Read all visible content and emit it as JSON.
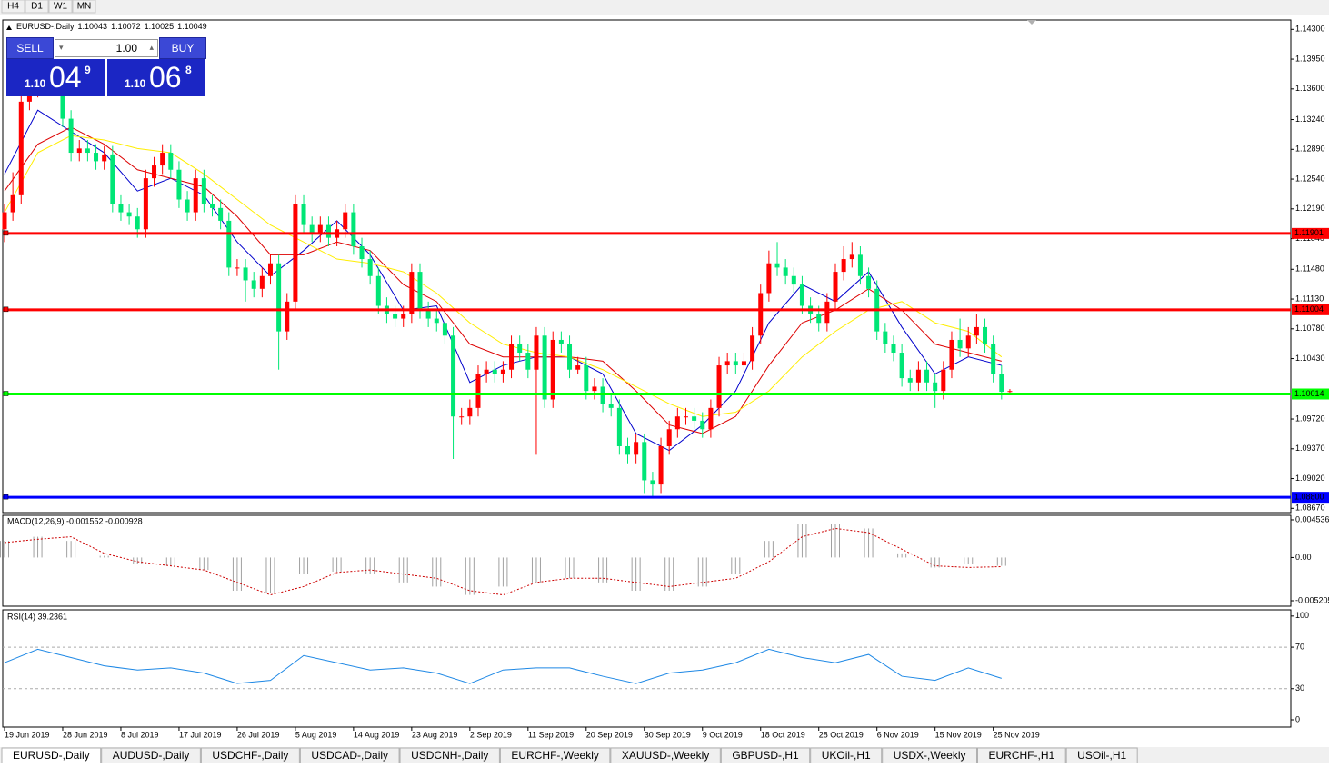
{
  "toolbar": [
    "H4",
    "D1",
    "W1",
    "MN"
  ],
  "trade_panel": {
    "sell": "SELL",
    "buy": "BUY",
    "lots": "1.00",
    "bid": {
      "big": "1.10",
      "main": "04",
      "sup": "9"
    },
    "ask": {
      "big": "1.10",
      "main": "06",
      "sup": "8"
    }
  },
  "chart_data": {
    "type": "candlestick",
    "title": "EURUSD-,Daily",
    "up_color": "#ff0000",
    "down_color": "#00e676",
    "ohlc": [
      [
        1.1195,
        1.1225,
        1.118,
        1.1215
      ],
      [
        1.1215,
        1.1262,
        1.1205,
        1.1235
      ],
      [
        1.1235,
        1.1355,
        1.1225,
        1.1345
      ],
      [
        1.1345,
        1.1375,
        1.1335,
        1.136
      ],
      [
        1.136,
        1.138,
        1.135,
        1.1365
      ],
      [
        1.1365,
        1.1385,
        1.1355,
        1.137
      ],
      [
        1.137,
        1.138,
        1.1355,
        1.1365
      ],
      [
        1.1365,
        1.1375,
        1.1315,
        1.1325
      ],
      [
        1.1325,
        1.1335,
        1.1275,
        1.1285
      ],
      [
        1.1285,
        1.13,
        1.1275,
        1.129
      ],
      [
        1.129,
        1.13,
        1.1275,
        1.1285
      ],
      [
        1.1285,
        1.1295,
        1.1265,
        1.1275
      ],
      [
        1.1275,
        1.1293,
        1.1265,
        1.1283
      ],
      [
        1.1283,
        1.1293,
        1.1215,
        1.1225
      ],
      [
        1.1225,
        1.1235,
        1.1205,
        1.1215
      ],
      [
        1.1215,
        1.1225,
        1.12,
        1.121
      ],
      [
        1.121,
        1.122,
        1.1185,
        1.1195
      ],
      [
        1.1195,
        1.1265,
        1.1185,
        1.1255
      ],
      [
        1.1255,
        1.128,
        1.1245,
        1.127
      ],
      [
        1.127,
        1.1295,
        1.126,
        1.1285
      ],
      [
        1.1285,
        1.1295,
        1.1255,
        1.1265
      ],
      [
        1.1265,
        1.1275,
        1.122,
        1.123
      ],
      [
        1.123,
        1.124,
        1.1205,
        1.1215
      ],
      [
        1.1215,
        1.1265,
        1.1205,
        1.1255
      ],
      [
        1.1255,
        1.1265,
        1.1215,
        1.1225
      ],
      [
        1.1225,
        1.1235,
        1.121,
        1.122
      ],
      [
        1.122,
        1.123,
        1.1195,
        1.1205
      ],
      [
        1.1205,
        1.1215,
        1.114,
        1.115
      ],
      [
        1.115,
        1.116,
        1.114,
        1.115
      ],
      [
        1.115,
        1.116,
        1.111,
        1.1135
      ],
      [
        1.1135,
        1.1145,
        1.1115,
        1.1125
      ],
      [
        1.1125,
        1.115,
        1.1115,
        1.114
      ],
      [
        1.114,
        1.1165,
        1.113,
        1.1155
      ],
      [
        1.1155,
        1.1165,
        1.103,
        1.1075
      ],
      [
        1.1075,
        1.112,
        1.1065,
        1.111
      ],
      [
        1.111,
        1.1235,
        1.11,
        1.1225
      ],
      [
        1.1225,
        1.1235,
        1.119,
        1.12
      ],
      [
        1.12,
        1.121,
        1.118,
        1.119
      ],
      [
        1.119,
        1.121,
        1.118,
        1.12
      ],
      [
        1.12,
        1.121,
        1.1175,
        1.1185
      ],
      [
        1.1185,
        1.1205,
        1.1175,
        1.1195
      ],
      [
        1.1195,
        1.1225,
        1.1185,
        1.1215
      ],
      [
        1.1215,
        1.1225,
        1.1165,
        1.1175
      ],
      [
        1.1175,
        1.1185,
        1.115,
        1.116
      ],
      [
        1.116,
        1.117,
        1.113,
        1.114
      ],
      [
        1.114,
        1.115,
        1.1095,
        1.1105
      ],
      [
        1.1105,
        1.1115,
        1.1085,
        1.1095
      ],
      [
        1.1095,
        1.1105,
        1.108,
        1.109
      ],
      [
        1.109,
        1.1105,
        1.108,
        1.1095
      ],
      [
        1.1095,
        1.1155,
        1.1085,
        1.1145
      ],
      [
        1.1145,
        1.1155,
        1.109,
        1.11
      ],
      [
        1.11,
        1.111,
        1.108,
        1.109
      ],
      [
        1.109,
        1.11,
        1.1075,
        1.1085
      ],
      [
        1.1085,
        1.1095,
        1.106,
        1.107
      ],
      [
        1.107,
        1.108,
        1.0925,
        1.0975
      ],
      [
        1.0975,
        1.0985,
        1.0965,
        1.0975
      ],
      [
        1.0975,
        1.0995,
        1.0965,
        1.0985
      ],
      [
        1.0985,
        1.1035,
        1.0975,
        1.1025
      ],
      [
        1.1025,
        1.104,
        1.1015,
        1.103
      ],
      [
        1.103,
        1.104,
        1.1015,
        1.1025
      ],
      [
        1.1025,
        1.104,
        1.1015,
        1.103
      ],
      [
        1.103,
        1.107,
        1.102,
        1.106
      ],
      [
        1.106,
        1.107,
        1.104,
        1.105
      ],
      [
        1.105,
        1.106,
        1.102,
        1.103
      ],
      [
        1.103,
        1.108,
        1.093,
        1.107
      ],
      [
        1.107,
        1.108,
        1.0985,
        1.0995
      ],
      [
        1.0995,
        1.1075,
        1.0985,
        1.1065
      ],
      [
        1.1065,
        1.1075,
        1.105,
        1.106
      ],
      [
        1.106,
        1.107,
        1.102,
        1.103
      ],
      [
        1.103,
        1.1045,
        1.1025,
        1.1035
      ],
      [
        1.1035,
        1.1045,
        1.0995,
        1.1005
      ],
      [
        1.1005,
        1.102,
        1.0995,
        1.101
      ],
      [
        1.101,
        1.102,
        1.098,
        1.099
      ],
      [
        1.099,
        1.1,
        1.0975,
        1.0985
      ],
      [
        1.0985,
        1.0995,
        1.093,
        1.094
      ],
      [
        1.094,
        1.095,
        1.092,
        1.093
      ],
      [
        1.093,
        1.0955,
        1.092,
        1.0945
      ],
      [
        1.0945,
        1.0955,
        1.0885,
        1.09
      ],
      [
        1.09,
        1.091,
        1.088,
        1.0895
      ],
      [
        1.0895,
        1.095,
        1.0885,
        1.094
      ],
      [
        1.094,
        1.097,
        1.093,
        1.096
      ],
      [
        1.096,
        1.0985,
        1.095,
        1.0975
      ],
      [
        1.0975,
        1.0985,
        1.0965,
        1.0975
      ],
      [
        1.0975,
        1.0985,
        1.096,
        1.097
      ],
      [
        1.097,
        1.098,
        1.095,
        1.096
      ],
      [
        1.096,
        1.0995,
        1.095,
        1.0985
      ],
      [
        1.0985,
        1.1045,
        1.0975,
        1.1035
      ],
      [
        1.1035,
        1.105,
        1.1025,
        1.104
      ],
      [
        1.104,
        1.105,
        1.1025,
        1.1035
      ],
      [
        1.1035,
        1.105,
        1.1025,
        1.104
      ],
      [
        1.104,
        1.108,
        1.103,
        1.107
      ],
      [
        1.107,
        1.113,
        1.106,
        1.112
      ],
      [
        1.112,
        1.117,
        1.111,
        1.1155
      ],
      [
        1.1155,
        1.118,
        1.114,
        1.115
      ],
      [
        1.115,
        1.116,
        1.113,
        1.114
      ],
      [
        1.114,
        1.115,
        1.112,
        1.113
      ],
      [
        1.113,
        1.114,
        1.1095,
        1.1105
      ],
      [
        1.1105,
        1.1115,
        1.1085,
        1.1095
      ],
      [
        1.1095,
        1.1105,
        1.1075,
        1.1085
      ],
      [
        1.1085,
        1.112,
        1.1075,
        1.111
      ],
      [
        1.111,
        1.1155,
        1.11,
        1.1145
      ],
      [
        1.1145,
        1.1175,
        1.1135,
        1.116
      ],
      [
        1.116,
        1.118,
        1.115,
        1.1165
      ],
      [
        1.1165,
        1.1175,
        1.113,
        1.114
      ],
      [
        1.114,
        1.115,
        1.1115,
        1.1125
      ],
      [
        1.1125,
        1.1135,
        1.1065,
        1.1075
      ],
      [
        1.1075,
        1.1085,
        1.105,
        1.106
      ],
      [
        1.106,
        1.107,
        1.104,
        1.105
      ],
      [
        1.105,
        1.106,
        1.101,
        1.102
      ],
      [
        1.102,
        1.103,
        1.1005,
        1.1015
      ],
      [
        1.1015,
        1.104,
        1.1005,
        1.103
      ],
      [
        1.103,
        1.104,
        1.1005,
        1.1015
      ],
      [
        1.1015,
        1.1025,
        1.0985,
        1.1005
      ],
      [
        1.1005,
        1.104,
        1.0995,
        1.103
      ],
      [
        1.103,
        1.1075,
        1.102,
        1.1065
      ],
      [
        1.1065,
        1.109,
        1.1045,
        1.1055
      ],
      [
        1.1055,
        1.108,
        1.1045,
        1.107
      ],
      [
        1.107,
        1.1095,
        1.106,
        1.108
      ],
      [
        1.108,
        1.109,
        1.105,
        1.106
      ],
      [
        1.106,
        1.107,
        1.1015,
        1.1025
      ],
      [
        1.1025,
        1.1035,
        1.0995,
        1.1004
      ],
      [
        1.10043,
        1.10072,
        1.10025,
        1.10049
      ]
    ],
    "ylim": [
      1.0862,
      1.1441
    ],
    "yticks": [
      {
        "value": 1.143,
        "label": "1.14300"
      },
      {
        "value": 1.1395,
        "label": "1.13950"
      },
      {
        "value": 1.136,
        "label": "1.13600"
      },
      {
        "value": 1.1324,
        "label": "1.13240"
      },
      {
        "value": 1.1289,
        "label": "1.12890"
      },
      {
        "value": 1.1254,
        "label": "1.12540"
      },
      {
        "value": 1.1219,
        "label": "1.12190"
      },
      {
        "value": 1.1184,
        "label": "1.11840"
      },
      {
        "value": 1.1148,
        "label": "1.11480"
      },
      {
        "value": 1.1113,
        "label": "1.11130"
      },
      {
        "value": 1.1078,
        "label": "1.10780"
      },
      {
        "value": 1.1043,
        "label": "1.10430"
      },
      {
        "value": 1.0972,
        "label": "1.09720"
      },
      {
        "value": 1.0937,
        "label": "1.09370"
      },
      {
        "value": 1.0902,
        "label": "1.09020"
      },
      {
        "value": 1.0867,
        "label": "1.08670"
      }
    ],
    "levels": [
      {
        "price": 1.11901,
        "color": "#ff0000"
      },
      {
        "price": 1.11004,
        "color": "#ff0000"
      },
      {
        "price": 1.10014,
        "color": "#00ff00"
      },
      {
        "price": {
          "value": 1.088,
          "label": "1.08800"
        },
        "color": "#0000ff"
      }
    ],
    "dates": [
      "19 Jun 2019",
      "28 Jun 2019",
      "8 Jul 2019",
      "17 Jul 2019",
      "26 Jul 2019",
      "5 Aug 2019",
      "14 Aug 2019",
      "23 Aug 2019",
      "2 Sep 2019",
      "11 Sep 2019",
      "20 Sep 2019",
      "30 Sep 2019",
      "9 Oct 2019",
      "18 Oct 2019",
      "28 Oct 2019",
      "6 Nov 2019",
      "15 Nov 2019",
      "25 Nov 2019"
    ],
    "ma": {
      "x": [
        0,
        4,
        8,
        12,
        16,
        20,
        24,
        28,
        32,
        36,
        40,
        44,
        48,
        52,
        56,
        60,
        64,
        68,
        72,
        76,
        80,
        84,
        88,
        92,
        96,
        100,
        104,
        108,
        112,
        116,
        120
      ],
      "series": [
        {
          "color": "#0000cc",
          "values": [
            1.126,
            1.1335,
            1.131,
            1.1285,
            1.124,
            1.1255,
            1.1235,
            1.118,
            1.114,
            1.117,
            1.1205,
            1.1165,
            1.11,
            1.1105,
            1.1015,
            1.1035,
            1.1045,
            1.1045,
            1.1025,
            1.0955,
            1.0935,
            1.0965,
            1.1005,
            1.1085,
            1.113,
            1.111,
            1.1145,
            1.108,
            1.1025,
            1.1045,
            1.1035
          ]
        },
        {
          "color": "#dd0000",
          "values": [
            1.124,
            1.1295,
            1.1315,
            1.1295,
            1.1265,
            1.1255,
            1.1245,
            1.121,
            1.1165,
            1.1165,
            1.118,
            1.117,
            1.113,
            1.111,
            1.106,
            1.1045,
            1.1045,
            1.1045,
            1.104,
            1.1005,
            1.0965,
            1.0955,
            1.0975,
            1.1035,
            1.1085,
            1.11,
            1.1125,
            1.11,
            1.106,
            1.105,
            1.104
          ]
        },
        {
          "color": "#ffee00",
          "values": [
            1.1215,
            1.1285,
            1.1305,
            1.13,
            1.129,
            1.1285,
            1.126,
            1.123,
            1.12,
            1.118,
            1.116,
            1.1155,
            1.1145,
            1.112,
            1.1085,
            1.106,
            1.105,
            1.1045,
            1.103,
            1.101,
            1.099,
            1.0975,
            1.098,
            1.1005,
            1.1045,
            1.1075,
            1.11,
            1.111,
            1.1085,
            1.1075,
            1.1045
          ]
        }
      ]
    }
  },
  "macd": {
    "type": "macd",
    "label": "MACD(12,26,9) -0.001552 -0.000928",
    "ylim": [
      -0.00586,
      0.00508
    ],
    "yticks": [
      0.004536,
      {
        "value": 0,
        "label": "0.00"
      },
      -0.005205
    ],
    "x": [
      0,
      4,
      8,
      12,
      16,
      20,
      24,
      28,
      32,
      36,
      40,
      44,
      48,
      52,
      56,
      60,
      64,
      68,
      72,
      76,
      80,
      84,
      88,
      92,
      96,
      100,
      104,
      108,
      112,
      116,
      120
    ],
    "histogram": [
      0.002,
      0.0025,
      0.002,
      0.0002,
      -0.0008,
      -0.001,
      -0.0015,
      -0.004,
      -0.0043,
      -0.002,
      -0.0017,
      -0.002,
      -0.003,
      -0.0035,
      -0.0045,
      -0.0035,
      -0.003,
      -0.0025,
      -0.003,
      -0.004,
      -0.004,
      -0.0035,
      -0.002,
      0.002,
      0.004,
      0.004,
      0.0035,
      0.0005,
      -0.0012,
      -0.0008,
      -0.001
    ],
    "signal": [
      0.0018,
      0.0022,
      0.0025,
      0.0005,
      -0.0005,
      -0.001,
      -0.0015,
      -0.003,
      -0.0045,
      -0.0035,
      -0.0018,
      -0.0015,
      -0.002,
      -0.0025,
      -0.004,
      -0.0045,
      -0.003,
      -0.0025,
      -0.0025,
      -0.003,
      -0.0035,
      -0.003,
      -0.0025,
      -0.0005,
      0.0025,
      0.0035,
      0.003,
      0.001,
      -0.001,
      -0.0012,
      -0.0011
    ],
    "histogram_color": "#a0a0a0",
    "signal_color": "#cc0000"
  },
  "rsi": {
    "type": "line",
    "label": "RSI(14) 39.2361",
    "ylim": [
      -7,
      106
    ],
    "yticks": [
      100,
      70,
      30,
      0
    ],
    "levels": [
      70,
      30
    ],
    "color": "#1e88e5",
    "x": [
      0,
      4,
      8,
      12,
      16,
      20,
      24,
      28,
      32,
      36,
      40,
      44,
      48,
      52,
      56,
      60,
      64,
      68,
      72,
      76,
      80,
      84,
      88,
      92,
      96,
      100,
      104,
      108,
      112,
      116,
      120
    ],
    "values": [
      55,
      68,
      60,
      52,
      48,
      50,
      45,
      35,
      38,
      62,
      55,
      48,
      50,
      45,
      35,
      48,
      50,
      50,
      42,
      35,
      45,
      48,
      55,
      68,
      60,
      55,
      63,
      42,
      38,
      50,
      40
    ]
  },
  "tabs": [
    {
      "label": "EURUSD-,Daily",
      "active": true
    },
    {
      "label": "AUDUSD-,Daily"
    },
    {
      "label": "USDCHF-,Daily"
    },
    {
      "label": "USDCAD-,Daily"
    },
    {
      "label": "USDCNH-,Daily"
    },
    {
      "label": "EURCHF-,Weekly"
    },
    {
      "label": "XAUUSD-,Weekly"
    },
    {
      "label": "GBPUSD-,H1"
    },
    {
      "label": "UKOil-,H1"
    },
    {
      "label": "USDX-,Weekly"
    },
    {
      "label": "EURCHF-,H1"
    },
    {
      "label": "USOil-,H1"
    }
  ]
}
